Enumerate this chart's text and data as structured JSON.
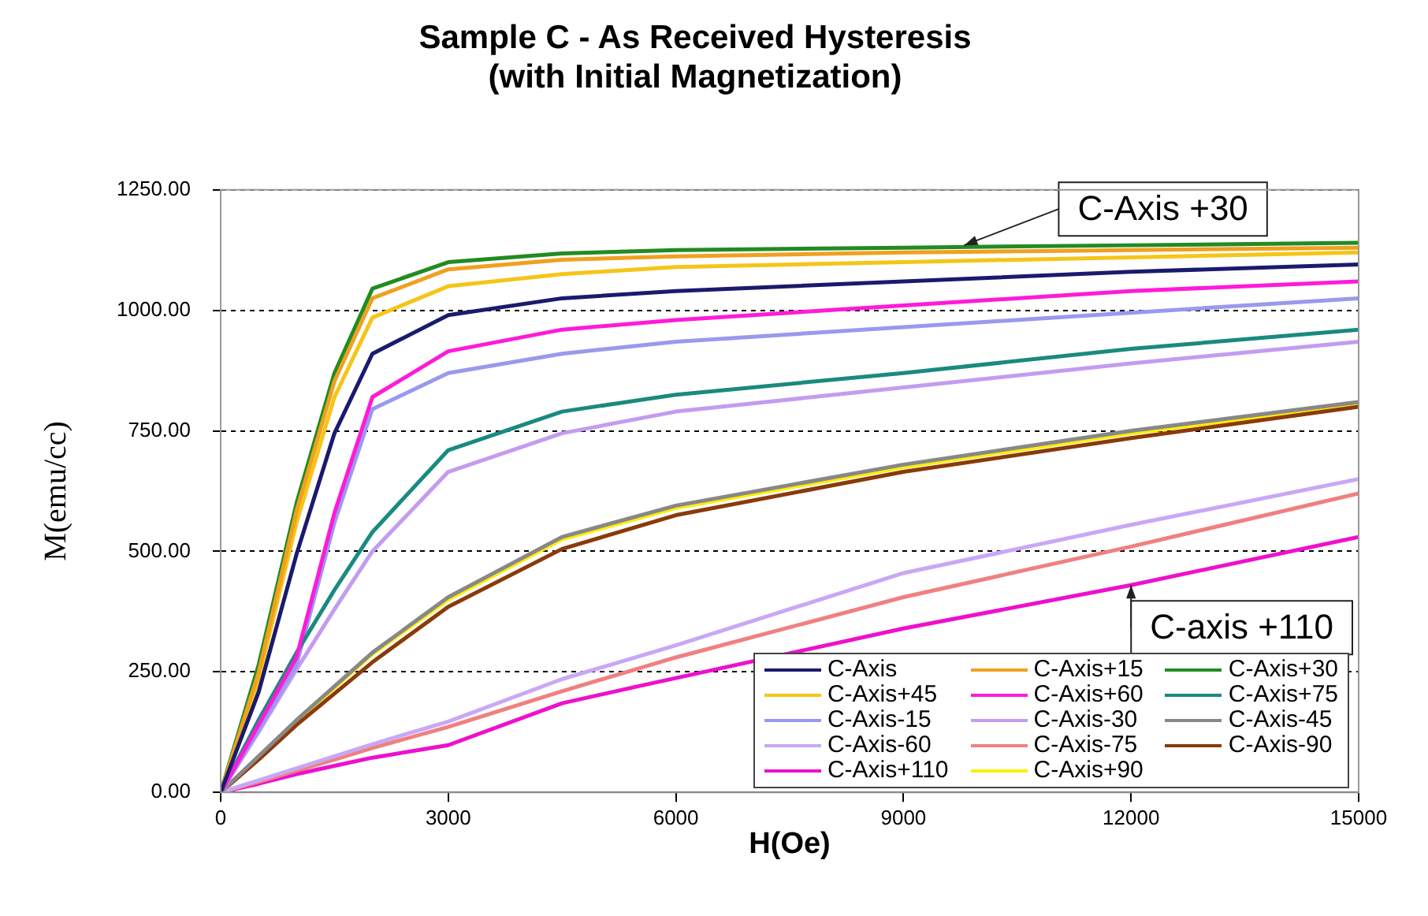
{
  "chart_data": {
    "type": "line",
    "title": "Sample C - As Received Hysteresis\n(with Initial Magnetization)",
    "xlabel": "H(Oe)",
    "ylabel": "M(emu/cc)",
    "x": [
      0,
      500,
      1000,
      1500,
      2000,
      3000,
      4500,
      6000,
      9000,
      12000,
      15000
    ],
    "xlim": [
      0,
      15000
    ],
    "xticks": [
      0,
      3000,
      6000,
      9000,
      12000,
      15000
    ],
    "ylim": [
      0,
      1250
    ],
    "yticks": [
      {
        "value": 0,
        "label": "0.00"
      },
      {
        "value": 250,
        "label": "250.00"
      },
      {
        "value": 500,
        "label": "500.00"
      },
      {
        "value": 750,
        "label": "750.00"
      },
      {
        "value": 1000,
        "label": "1000.00"
      },
      {
        "value": 1250,
        "label": "1250.00"
      }
    ],
    "grid": "y",
    "legend": "bottom right",
    "marker": "none",
    "line_style": "solid",
    "annotations": [
      {
        "text": "C-Axis +30",
        "x": 9800,
        "y": 1135
      },
      {
        "text": "C-axis +110",
        "x": 12000,
        "y": 430
      }
    ],
    "series": [
      {
        "name": "C-Axis",
        "color": "#1a1a6e",
        "values": [
          0,
          208,
          494,
          745,
          910,
          990,
          1025,
          1040,
          1060,
          1080,
          1095
        ]
      },
      {
        "name": "C-Axis+15",
        "color": "#f0a020",
        "values": [
          0,
          248,
          584,
          853,
          1025,
          1085,
          1105,
          1112,
          1120,
          1125,
          1130
        ]
      },
      {
        "name": "C-Axis+30",
        "color": "#228b22",
        "values": [
          0,
          264,
          600,
          870,
          1045,
          1100,
          1118,
          1125,
          1130,
          1135,
          1140
        ]
      },
      {
        "name": "C-Axis+45",
        "color": "#f5c518",
        "values": [
          0,
          235,
          560,
          820,
          985,
          1050,
          1075,
          1090,
          1100,
          1110,
          1120
        ]
      },
      {
        "name": "C-Axis+60",
        "color": "#ff1ad9",
        "values": [
          0,
          140,
          280,
          580,
          820,
          915,
          960,
          980,
          1010,
          1040,
          1060
        ]
      },
      {
        "name": "C-Axis+75",
        "color": "#1a8a80",
        "values": [
          0,
          150,
          290,
          420,
          540,
          710,
          790,
          825,
          870,
          920,
          960
        ]
      },
      {
        "name": "C-Axis-15",
        "color": "#9999ee",
        "values": [
          0,
          130,
          265,
          560,
          795,
          870,
          910,
          935,
          965,
          995,
          1025
        ]
      },
      {
        "name": "C-Axis-30",
        "color": "#c39cf0",
        "values": [
          0,
          125,
          255,
          380,
          500,
          665,
          745,
          790,
          840,
          890,
          935
        ]
      },
      {
        "name": "C-Axis-45",
        "color": "#888888",
        "values": [
          0,
          75,
          150,
          220,
          290,
          405,
          530,
          595,
          680,
          750,
          810
        ]
      },
      {
        "name": "C-Axis-60",
        "color": "#c8a8f5",
        "values": [
          0,
          25,
          50,
          75,
          100,
          147,
          235,
          305,
          455,
          555,
          650
        ]
      },
      {
        "name": "C-Axis-75",
        "color": "#f08080",
        "values": [
          0,
          22,
          45,
          68,
          92,
          136,
          210,
          280,
          405,
          510,
          620
        ]
      },
      {
        "name": "C-Axis-90",
        "color": "#8b3a0a",
        "values": [
          0,
          68,
          140,
          205,
          270,
          385,
          505,
          575,
          665,
          735,
          800
        ]
      },
      {
        "name": "C-Axis+110",
        "color": "#ee10cc",
        "x": [
          0,
          500,
          1000,
          1500,
          2000,
          3000,
          4500,
          5500,
          9000,
          12000,
          15000
        ],
        "values": [
          0,
          18,
          38,
          55,
          72,
          98,
          185,
          220,
          340,
          430,
          530
        ]
      },
      {
        "name": "C-Axis+90",
        "color": "#ffee00",
        "values": [
          0,
          73,
          147,
          217,
          287,
          400,
          525,
          590,
          675,
          745,
          805
        ]
      }
    ]
  }
}
